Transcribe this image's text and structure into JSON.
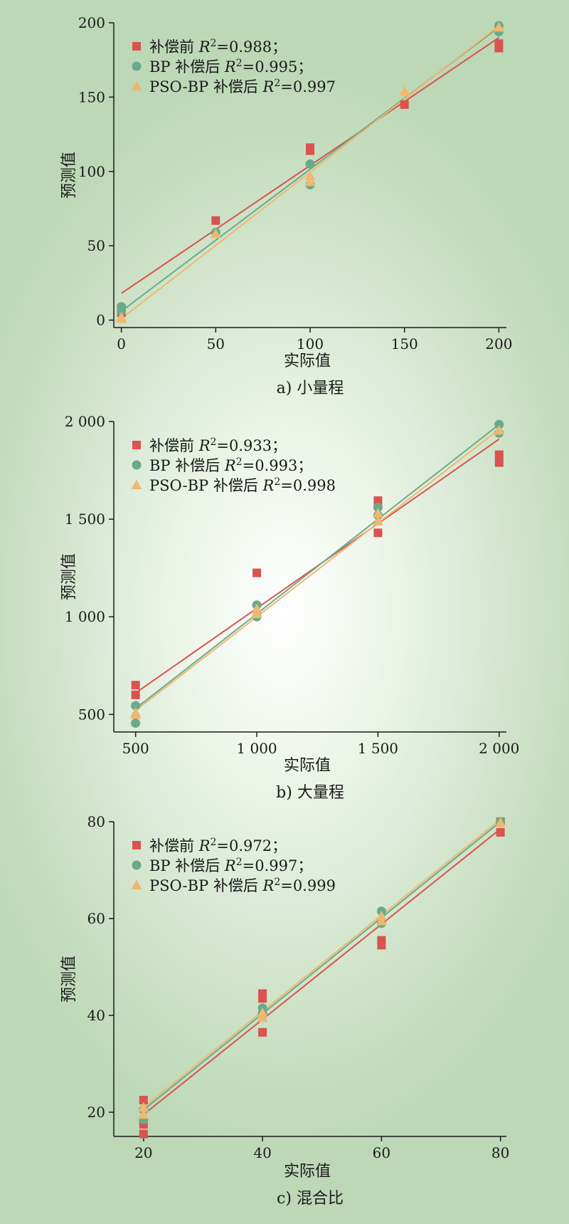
{
  "colors": {
    "before": "#d9534f",
    "bp": "#6aaa8a",
    "pso": "#f0b770",
    "axis": "#1a1a1a"
  },
  "chart_data": [
    {
      "type": "scatter",
      "caption": "a) 小量程",
      "xlabel": "实际值",
      "ylabel": "预测值",
      "xlim": [
        -4,
        204
      ],
      "ylim": [
        -5,
        200
      ],
      "xticks": [
        0,
        50,
        100,
        150,
        200
      ],
      "xtick_labels": [
        "0",
        "50",
        "100",
        "150",
        "200"
      ],
      "yticks": [
        0,
        50,
        100,
        150,
        200
      ],
      "ytick_labels": [
        "0",
        "50",
        "100",
        "150",
        "200"
      ],
      "legend": "top-left",
      "series": [
        {
          "key": "before",
          "name": "补偿前",
          "r2": "R²=0.988；",
          "marker": "square",
          "points": [
            [
              0,
              8
            ],
            [
              0,
              5
            ],
            [
              50,
              67
            ],
            [
              100,
              116
            ],
            [
              100,
              114
            ],
            [
              150,
              145
            ],
            [
              200,
              186
            ],
            [
              200,
              183
            ]
          ],
          "fit": [
            [
              0,
              18
            ],
            [
              200,
              190
            ]
          ]
        },
        {
          "key": "bp",
          "name": "BP 补偿后",
          "r2": "R²=0.995；",
          "marker": "circle",
          "points": [
            [
              0,
              9
            ],
            [
              0,
              6
            ],
            [
              50,
              59
            ],
            [
              100,
              105
            ],
            [
              100,
              91
            ],
            [
              200,
              198
            ],
            [
              200,
              194
            ]
          ],
          "fit": [
            [
              0,
              6
            ],
            [
              200,
              197
            ]
          ]
        },
        {
          "key": "pso",
          "name": "PSO-BP 补偿后",
          "r2": "R²=0.997",
          "marker": "triangle",
          "points": [
            [
              0,
              2
            ],
            [
              0,
              1
            ],
            [
              50,
              58
            ],
            [
              100,
              97
            ],
            [
              100,
              93
            ],
            [
              150,
              154
            ],
            [
              200,
              197
            ]
          ],
          "fit": [
            [
              0,
              1
            ],
            [
              200,
              198
            ]
          ]
        }
      ]
    },
    {
      "type": "scatter",
      "caption": "b) 大量程",
      "xlabel": "实际值",
      "ylabel": "预测值",
      "xlim": [
        410,
        2030
      ],
      "ylim": [
        410,
        2000
      ],
      "xticks": [
        500,
        1000,
        1500,
        2000
      ],
      "xtick_labels": [
        "500",
        "1 000",
        "1 500",
        "2 000"
      ],
      "yticks": [
        500,
        1000,
        1500,
        2000
      ],
      "ytick_labels": [
        "500",
        "1 000",
        "1 500",
        "2 000"
      ],
      "legend": "top-left",
      "series": [
        {
          "key": "before",
          "name": "补偿前",
          "r2": "R²=0.933；",
          "marker": "square",
          "points": [
            [
              500,
              650
            ],
            [
              500,
              600
            ],
            [
              1000,
              1225
            ],
            [
              1500,
              1595
            ],
            [
              1500,
              1430
            ],
            [
              2000,
              1830
            ],
            [
              2000,
              1790
            ]
          ],
          "fit": [
            [
              500,
              610
            ],
            [
              2000,
              1910
            ]
          ]
        },
        {
          "key": "bp",
          "name": "BP 补偿后",
          "r2": "R²=0.993；",
          "marker": "circle",
          "points": [
            [
              500,
              545
            ],
            [
              500,
              455
            ],
            [
              1000,
              1060
            ],
            [
              1000,
              1000
            ],
            [
              1500,
              1560
            ],
            [
              1500,
              1520
            ],
            [
              2000,
              1985
            ],
            [
              2000,
              1940
            ]
          ],
          "fit": [
            [
              500,
              530
            ],
            [
              2000,
              1985
            ]
          ]
        },
        {
          "key": "pso",
          "name": "PSO-BP 补偿后",
          "r2": "R²=0.998",
          "marker": "triangle",
          "points": [
            [
              500,
              510
            ],
            [
              500,
              500
            ],
            [
              1000,
              1040
            ],
            [
              1000,
              1015
            ],
            [
              1500,
              1530
            ],
            [
              1500,
              1490
            ],
            [
              2000,
              1955
            ]
          ],
          "fit": [
            [
              500,
              520
            ],
            [
              2000,
              1960
            ]
          ]
        }
      ]
    },
    {
      "type": "scatter",
      "caption": "c) 混合比",
      "xlabel": "实际值",
      "ylabel": "预测值",
      "xlim": [
        15,
        81
      ],
      "ylim": [
        15,
        80
      ],
      "xticks": [
        20,
        40,
        60,
        80
      ],
      "xtick_labels": [
        "20",
        "40",
        "60",
        "80"
      ],
      "yticks": [
        20,
        40,
        60,
        80
      ],
      "ytick_labels": [
        "20",
        "40",
        "60",
        "80"
      ],
      "legend": "top-left",
      "series": [
        {
          "key": "before",
          "name": "补偿前",
          "r2": "R²=0.972；",
          "marker": "square",
          "points": [
            [
              20,
              22.5
            ],
            [
              20,
              15.5
            ],
            [
              20,
              17.5
            ],
            [
              40,
              44.5
            ],
            [
              40,
              43.5
            ],
            [
              40,
              36.5
            ],
            [
              60,
              55.5
            ],
            [
              60,
              54.5
            ],
            [
              80,
              80
            ],
            [
              80,
              77.8
            ]
          ],
          "fit": [
            [
              20,
              19.5
            ],
            [
              80,
              78.5
            ]
          ]
        },
        {
          "key": "bp",
          "name": "BP 补偿后",
          "r2": "R²=0.997；",
          "marker": "circle",
          "points": [
            [
              20,
              20.5
            ],
            [
              20,
              18.5
            ],
            [
              40,
              41.5
            ],
            [
              40,
              40.5
            ],
            [
              60,
              61.5
            ],
            [
              60,
              59
            ],
            [
              80,
              80
            ]
          ],
          "fit": [
            [
              20,
              20.5
            ],
            [
              80,
              80
            ]
          ]
        },
        {
          "key": "pso",
          "name": "PSO-BP 补偿后",
          "r2": "R²=0.999",
          "marker": "triangle",
          "points": [
            [
              20,
              21
            ],
            [
              20,
              19.5
            ],
            [
              40,
              40.5
            ],
            [
              40,
              39.5
            ],
            [
              60,
              60.5
            ],
            [
              60,
              59.5
            ],
            [
              80,
              79.8
            ]
          ],
          "fit": [
            [
              20,
              21
            ],
            [
              80,
              80.5
            ]
          ]
        }
      ]
    }
  ]
}
